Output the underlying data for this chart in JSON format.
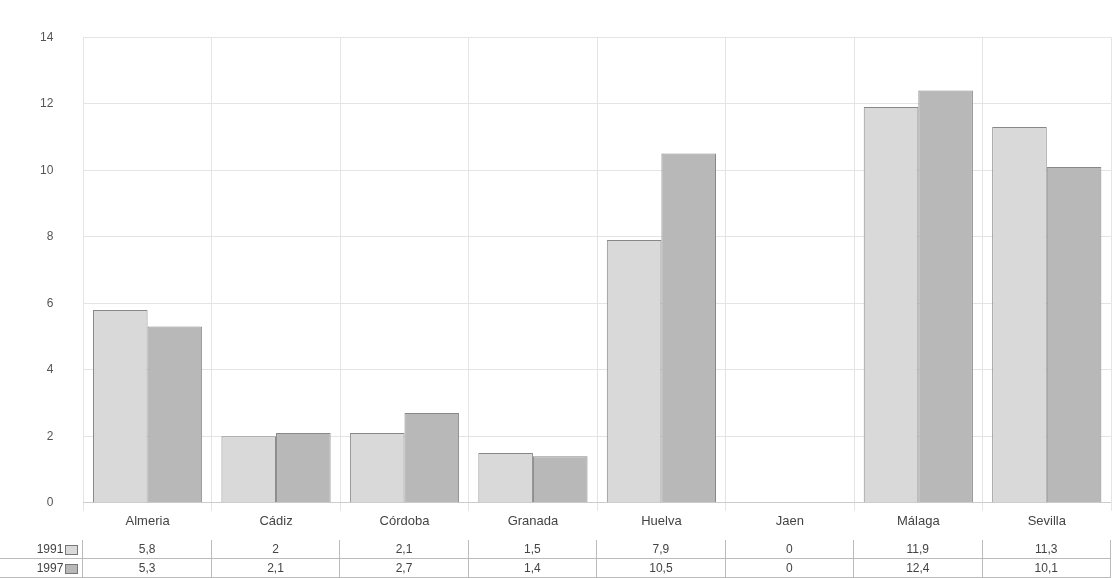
{
  "chart_data": {
    "type": "bar",
    "categories": [
      "Almeria",
      "Cádiz",
      "Córdoba",
      "Granada",
      "Huelva",
      "Jaen",
      "Málaga",
      "Sevilla"
    ],
    "series": [
      {
        "name": "1991",
        "color": "#d9d9d9",
        "values": [
          5.8,
          2,
          2.1,
          1.5,
          7.9,
          0,
          11.9,
          11.3
        ],
        "value_labels": [
          "5,8",
          "2",
          "2,1",
          "1,5",
          "7,9",
          "0",
          "11,9",
          "11,3"
        ]
      },
      {
        "name": "1997",
        "color": "#b8b8b8",
        "values": [
          5.3,
          2.1,
          2.7,
          1.4,
          10.5,
          0,
          12.4,
          10.1
        ],
        "value_labels": [
          "5,3",
          "2,1",
          "2,7",
          "1,4",
          "10,5",
          "0",
          "12,4",
          "10,1"
        ]
      }
    ],
    "ylim": [
      0,
      14
    ],
    "yticks": [
      0,
      2,
      4,
      6,
      8,
      10,
      12,
      14
    ],
    "grid": true,
    "legend": "bottom left"
  }
}
